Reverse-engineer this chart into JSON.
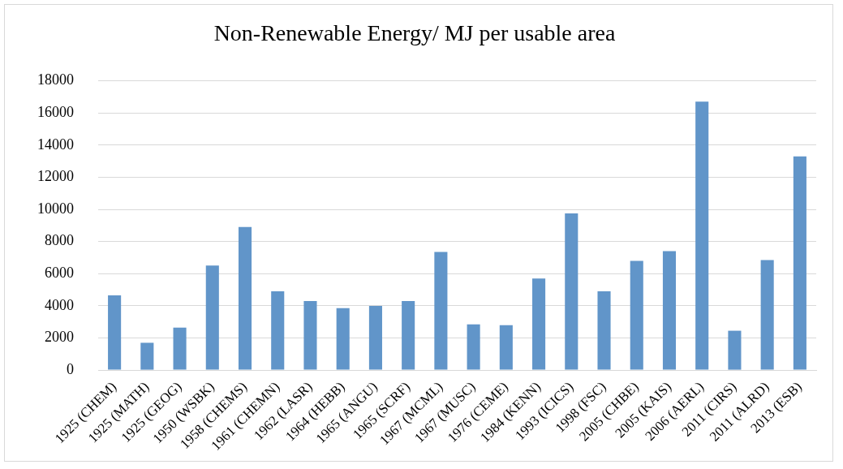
{
  "chart_data": {
    "type": "bar",
    "title": "Non-Renewable Energy/ MJ per usable area",
    "categories": [
      "1925 (CHEM)",
      "1925 (MATH)",
      "1925 (GEOG)",
      "1950 (WSBK)",
      "1958 (CHEMS)",
      "1961 (CHEMN)",
      "1962 (LASR)",
      "1964 (HEBB)",
      "1965 (ANGU)",
      "1965 (SCRF)",
      "1967 (MCML)",
      "1967 (MUSC)",
      "1976 (CEME)",
      "1984 (KENN)",
      "1993 (ICICS)",
      "1998 (FSC)",
      "2005 (CHBE)",
      "2005 (KAIS)",
      "2006 (AERL)",
      "2011 (CIRS)",
      "2011 (ALRD)",
      "2013 (ESB)"
    ],
    "values": [
      4650,
      1700,
      2650,
      6500,
      8900,
      4900,
      4300,
      3850,
      4000,
      4300,
      7350,
      2850,
      2800,
      5700,
      9750,
      4900,
      6800,
      7400,
      16700,
      2450,
      6850,
      13300
    ],
    "color": "#6195c9",
    "ylim": [
      0,
      18000
    ],
    "yticks": [
      0,
      2000,
      4000,
      6000,
      8000,
      10000,
      12000,
      14000,
      16000,
      18000
    ],
    "grid": "y",
    "legend": false
  }
}
